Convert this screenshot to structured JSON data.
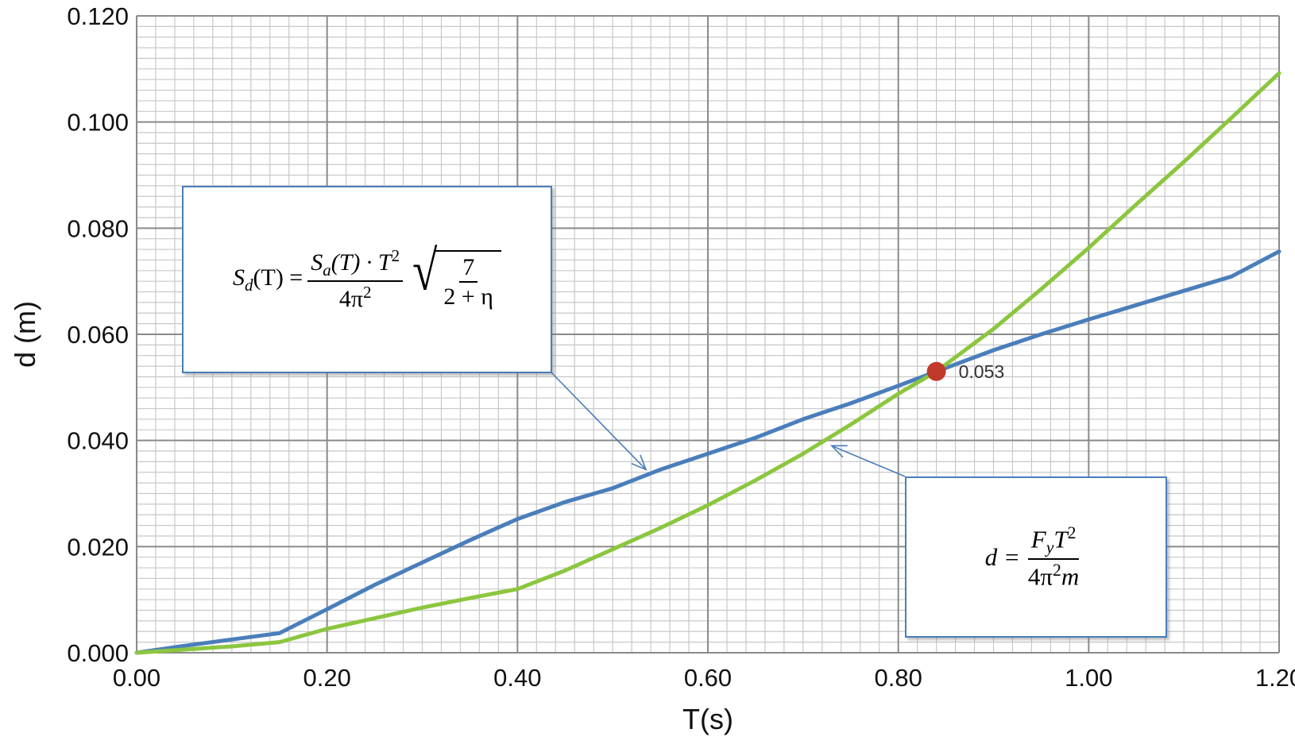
{
  "chart_data": {
    "type": "line",
    "xlabel": "T(s)",
    "ylabel": "d (m)",
    "xlim": [
      0,
      1.2
    ],
    "ylim": [
      0,
      0.12
    ],
    "x_ticks": [
      "0.00",
      "0.20",
      "0.40",
      "0.60",
      "0.80",
      "1.00",
      "1.20"
    ],
    "y_ticks": [
      "0.000",
      "0.020",
      "0.040",
      "0.060",
      "0.080",
      "0.100",
      "0.120"
    ],
    "grid": true,
    "series": [
      {
        "color": "#4a7ebb",
        "x": [
          0.0,
          0.05,
          0.1,
          0.15,
          0.2,
          0.25,
          0.3,
          0.35,
          0.4,
          0.45,
          0.5,
          0.55,
          0.6,
          0.65,
          0.7,
          0.75,
          0.8,
          0.84,
          0.9,
          0.95,
          1.0,
          1.05,
          1.1,
          1.15,
          1.2
        ],
        "y": [
          0.0,
          0.0013,
          0.0025,
          0.0037,
          0.0082,
          0.0128,
          0.017,
          0.0212,
          0.0252,
          0.0284,
          0.031,
          0.0345,
          0.0375,
          0.0405,
          0.044,
          0.047,
          0.0503,
          0.053,
          0.057,
          0.06,
          0.0628,
          0.0655,
          0.0682,
          0.0709,
          0.0756
        ]
      },
      {
        "color": "#8cc63f",
        "x": [
          0.0,
          0.05,
          0.1,
          0.15,
          0.2,
          0.25,
          0.3,
          0.35,
          0.4,
          0.45,
          0.5,
          0.55,
          0.6,
          0.65,
          0.7,
          0.75,
          0.8,
          0.84,
          0.9,
          0.95,
          1.0,
          1.05,
          1.1,
          1.15,
          1.2
        ],
        "y": [
          0.0,
          0.0006,
          0.0012,
          0.002,
          0.0045,
          0.0065,
          0.0085,
          0.0103,
          0.012,
          0.0155,
          0.0195,
          0.0235,
          0.0278,
          0.0325,
          0.0375,
          0.043,
          0.0488,
          0.053,
          0.061,
          0.0685,
          0.0763,
          0.0845,
          0.0925,
          0.1008,
          0.1092
        ]
      }
    ],
    "intersection": {
      "x": 0.84,
      "y": 0.053,
      "label": "0.053",
      "color": "#c0392b"
    },
    "annotations": [
      {
        "id": "sd",
        "parts": {
          "lhs": "S",
          "lhs_sub": "d",
          "lhs_arg": "(T) =",
          "num_a": "S",
          "num_a_sub": "a",
          "num_b": "(T) · T",
          "num_exp": "2",
          "den": "4π",
          "den_exp": "2",
          "rad_num": "7",
          "rad_den": "2 + η"
        }
      },
      {
        "id": "d",
        "parts": {
          "lhs": "d =",
          "num": "F",
          "num_sub": "y",
          "num_b": "T",
          "num_exp": "2",
          "den": "4π",
          "den_exp": "2",
          "den_b": "m"
        }
      }
    ]
  }
}
